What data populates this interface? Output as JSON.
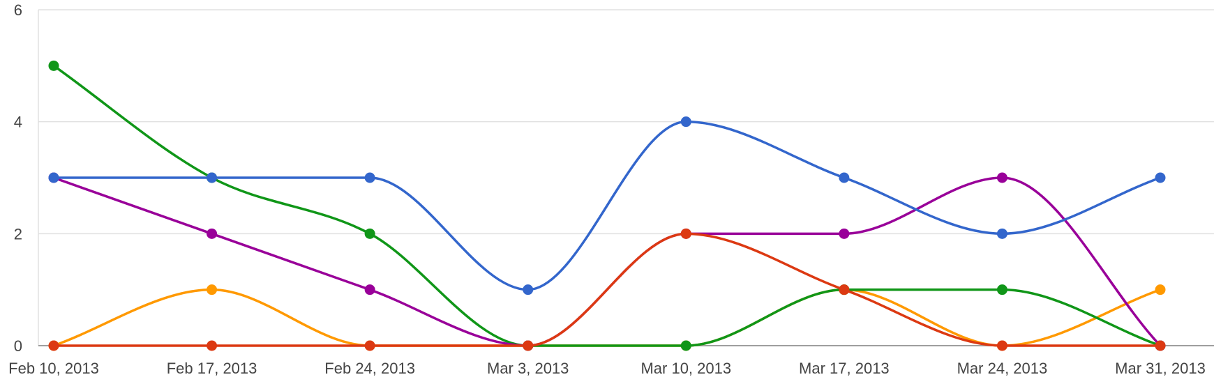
{
  "chart_data": {
    "type": "line",
    "smooth": true,
    "legend": "none",
    "grid": true,
    "x": [
      "Feb 10, 2013",
      "Feb 17, 2013",
      "Feb 24, 2013",
      "Mar 3, 2013",
      "Mar 10, 2013",
      "Mar 17, 2013",
      "Mar 24, 2013",
      "Mar 31, 2013"
    ],
    "ylim": [
      0,
      6
    ],
    "yticks": [
      0,
      2,
      4,
      6
    ],
    "series": [
      {
        "color": "#ff9900",
        "values": [
          0,
          1,
          0,
          0,
          0,
          1,
          0,
          1
        ]
      },
      {
        "color": "#109618",
        "values": [
          5,
          3,
          2,
          0,
          0,
          1,
          1,
          0
        ]
      },
      {
        "color": "#990099",
        "values": [
          3,
          2,
          1,
          0,
          2,
          2,
          3,
          0
        ]
      },
      {
        "color": "#3366cc",
        "values": [
          3,
          3,
          3,
          1,
          4,
          3,
          2,
          3
        ]
      },
      {
        "color": "#dc3912",
        "values": [
          0,
          0,
          0,
          0,
          2,
          1,
          0,
          0
        ]
      }
    ]
  }
}
